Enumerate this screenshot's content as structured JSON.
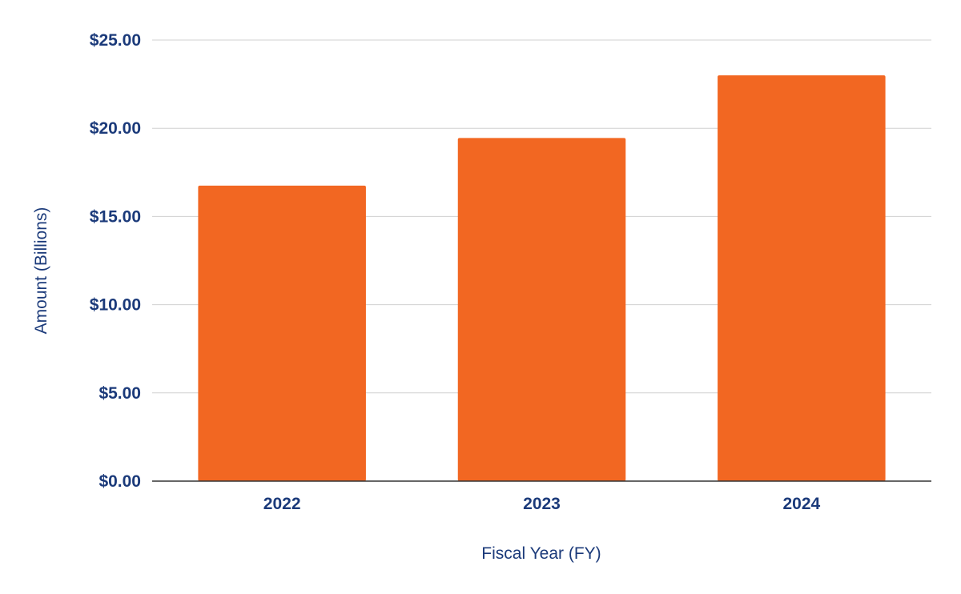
{
  "chart_data": {
    "type": "bar",
    "categories": [
      "2022",
      "2023",
      "2024"
    ],
    "values": [
      16.75,
      19.45,
      23.0
    ],
    "title": "",
    "xlabel": "Fiscal Year (FY)",
    "ylabel": "Amount (Billions)",
    "ylim": [
      0,
      25
    ],
    "yticks": [
      0,
      5,
      10,
      15,
      20,
      25
    ],
    "ytick_labels": [
      "$0.00",
      "$5.00",
      "$10.00",
      "$15.00",
      "$20.00",
      "$25.00"
    ],
    "grid": true,
    "legend": "none",
    "colors": {
      "bar": "#F26722",
      "text": "#1B3A7A",
      "grid": "#D0D0D0",
      "axis": "#333333"
    }
  }
}
